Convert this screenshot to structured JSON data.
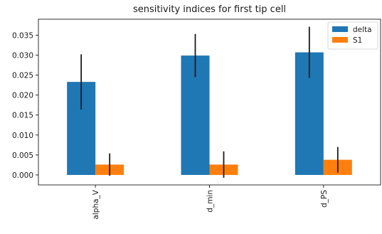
{
  "chart_data": {
    "type": "bar",
    "title": "sensitivity indices for first tip cell",
    "xlabel": "",
    "ylabel": "",
    "categories": [
      "alpha_V",
      "d_min",
      "d_PS"
    ],
    "series": [
      {
        "name": "delta",
        "color": "#1f77b4",
        "values": [
          0.0233,
          0.0299,
          0.0307
        ],
        "errors": [
          0.0069,
          0.0054,
          0.0064
        ]
      },
      {
        "name": "S1",
        "color": "#ff7f0e",
        "values": [
          0.0026,
          0.0026,
          0.0038
        ],
        "errors": [
          0.0028,
          0.0033,
          0.0032
        ]
      }
    ],
    "ylim": [
      -0.0025,
      0.039
    ],
    "yticks": [
      0.0,
      0.005,
      0.01,
      0.015,
      0.02,
      0.025,
      0.03,
      0.035
    ],
    "ytick_labels": [
      "0.000",
      "0.005",
      "0.010",
      "0.015",
      "0.020",
      "0.025",
      "0.030",
      "0.035"
    ],
    "grid": false,
    "legend_position": "top-right",
    "error_bar_color": "#1a1a1a"
  }
}
